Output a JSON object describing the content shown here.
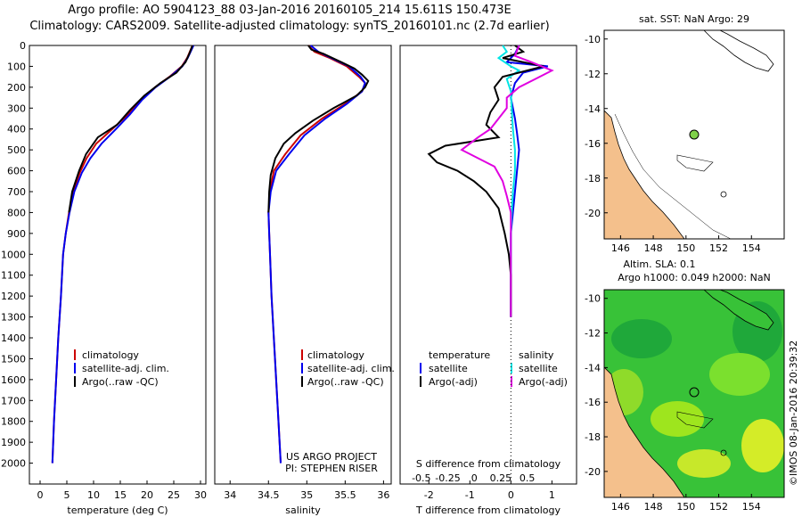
{
  "title_line1": "Argo profile: AO 5904123_88 03-Jan-2016 20160105_214 15.611S 150.473E",
  "title_line2": "Climatology: CARS2009. Satellite-adjusted climatology: synTS_20160101.nc (2.7d earlier)",
  "watermark": "©IMOS 08-Jan-2016 20:39:32",
  "colors": {
    "climatology": "#cc0000",
    "satellite": "#0000ee",
    "argo": "#000000",
    "cyan": "#00e5e5",
    "magenta": "#e000e0",
    "land": "#f4c08c",
    "sea_green": "#2ecc2e"
  },
  "chart_data": [
    {
      "type": "line",
      "id": "temperature",
      "xlabel": "temperature (deg C)",
      "ylabel": "depth",
      "xlim": [
        -2,
        31
      ],
      "ylim": [
        2100,
        0
      ],
      "xticks": [
        0,
        5,
        10,
        15,
        20,
        25,
        30
      ],
      "yticks": [
        0,
        100,
        200,
        300,
        400,
        500,
        600,
        700,
        800,
        900,
        1000,
        1100,
        1200,
        1300,
        1400,
        1500,
        1600,
        1700,
        1800,
        1900,
        2000
      ],
      "legend": [
        "climatology",
        "satellite-adj. clim.",
        "Argo(..raw -QC)"
      ],
      "series": [
        {
          "name": "climatology",
          "color": "#cc0000",
          "points": [
            [
              28.5,
              0
            ],
            [
              27.5,
              60
            ],
            [
              26.5,
              100
            ],
            [
              24.2,
              150
            ],
            [
              21.5,
              200
            ],
            [
              19,
              260
            ],
            [
              16.5,
              330
            ],
            [
              13.5,
              400
            ],
            [
              10.5,
              470
            ],
            [
              8.7,
              540
            ],
            [
              7.4,
              610
            ],
            [
              6.2,
              700
            ],
            [
              5.4,
              800
            ],
            [
              4.8,
              900
            ],
            [
              4.3,
              1000
            ],
            [
              3.9,
              1200
            ],
            [
              3.4,
              1400
            ],
            [
              3.0,
              1600
            ],
            [
              2.6,
              1800
            ],
            [
              2.3,
              2000
            ]
          ]
        },
        {
          "name": "satellite-adj. clim.",
          "color": "#0000ee",
          "points": [
            [
              28.7,
              0
            ],
            [
              27.6,
              60
            ],
            [
              26.6,
              100
            ],
            [
              24.3,
              150
            ],
            [
              21.6,
              200
            ],
            [
              19.1,
              260
            ],
            [
              16.8,
              330
            ],
            [
              14.2,
              400
            ],
            [
              11.5,
              470
            ],
            [
              9.4,
              540
            ],
            [
              7.8,
              610
            ],
            [
              6.4,
              700
            ],
            [
              5.5,
              800
            ],
            [
              4.8,
              900
            ],
            [
              4.3,
              1000
            ],
            [
              3.9,
              1200
            ],
            [
              3.4,
              1400
            ],
            [
              3.0,
              1600
            ],
            [
              2.6,
              1800
            ],
            [
              2.3,
              2000
            ]
          ]
        },
        {
          "name": "Argo(..raw -QC)",
          "color": "#000000",
          "points": [
            [
              28.5,
              0
            ],
            [
              27.9,
              40
            ],
            [
              27.2,
              80
            ],
            [
              25.5,
              130
            ],
            [
              22.5,
              180
            ],
            [
              19.5,
              240
            ],
            [
              16.8,
              310
            ],
            [
              14.4,
              380
            ],
            [
              10.8,
              440
            ],
            [
              8.6,
              520
            ],
            [
              7.3,
              600
            ],
            [
              6.0,
              700
            ],
            [
              5.4,
              800
            ]
          ]
        }
      ]
    },
    {
      "type": "line",
      "id": "salinity",
      "xlabel": "salinity",
      "ylabel": "depth",
      "xlim": [
        33.8,
        36.1
      ],
      "ylim": [
        2100,
        0
      ],
      "xticks": [
        34,
        34.5,
        35,
        35.5,
        36
      ],
      "tick_labels": [
        "34",
        "34.5",
        "35",
        "35.5",
        "36"
      ],
      "legend": [
        "climatology",
        "satellite-adj. clim.",
        "Argo(..raw -QC)"
      ],
      "annotation": [
        "US ARGO PROJECT",
        "PI: STEPHEN RISER"
      ],
      "series": [
        {
          "name": "climatology",
          "color": "#cc0000",
          "points": [
            [
              35.02,
              0
            ],
            [
              35.1,
              30
            ],
            [
              35.3,
              60
            ],
            [
              35.52,
              100
            ],
            [
              35.68,
              150
            ],
            [
              35.76,
              180
            ],
            [
              35.72,
              220
            ],
            [
              35.5,
              280
            ],
            [
              35.2,
              350
            ],
            [
              34.92,
              430
            ],
            [
              34.72,
              520
            ],
            [
              34.57,
              600
            ],
            [
              34.52,
              700
            ],
            [
              34.5,
              800
            ],
            [
              34.51,
              900
            ],
            [
              34.52,
              1000
            ],
            [
              34.54,
              1200
            ],
            [
              34.57,
              1400
            ],
            [
              34.6,
              1600
            ],
            [
              34.63,
              1800
            ],
            [
              34.66,
              2000
            ]
          ]
        },
        {
          "name": "satellite-adj. clim.",
          "color": "#0000ee",
          "points": [
            [
              35.05,
              0
            ],
            [
              35.15,
              30
            ],
            [
              35.32,
              60
            ],
            [
              35.55,
              100
            ],
            [
              35.7,
              150
            ],
            [
              35.76,
              180
            ],
            [
              35.72,
              220
            ],
            [
              35.52,
              280
            ],
            [
              35.24,
              350
            ],
            [
              34.97,
              430
            ],
            [
              34.77,
              520
            ],
            [
              34.6,
              600
            ],
            [
              34.53,
              700
            ],
            [
              34.5,
              800
            ],
            [
              34.51,
              900
            ],
            [
              34.52,
              1000
            ],
            [
              34.54,
              1200
            ],
            [
              34.57,
              1400
            ],
            [
              34.6,
              1600
            ],
            [
              34.63,
              1800
            ],
            [
              34.66,
              2000
            ]
          ]
        },
        {
          "name": "Argo(..raw -QC)",
          "color": "#000000",
          "points": [
            [
              35.02,
              0
            ],
            [
              35.06,
              20
            ],
            [
              35.22,
              40
            ],
            [
              35.45,
              80
            ],
            [
              35.62,
              110
            ],
            [
              35.72,
              140
            ],
            [
              35.8,
              170
            ],
            [
              35.76,
              200
            ],
            [
              35.65,
              240
            ],
            [
              35.35,
              300
            ],
            [
              35.08,
              360
            ],
            [
              34.85,
              420
            ],
            [
              34.7,
              470
            ],
            [
              34.59,
              540
            ],
            [
              34.53,
              620
            ],
            [
              34.51,
              700
            ],
            [
              34.5,
              800
            ]
          ]
        }
      ]
    },
    {
      "type": "line",
      "id": "difference",
      "xlabel": "T difference from climatology",
      "xlabel2": "S difference from climatology",
      "xlim": [
        -2.7,
        1.6
      ],
      "ylim": [
        2100,
        0
      ],
      "xticks": [
        -2,
        -1,
        0,
        1
      ],
      "tick_labels": [
        "-2",
        "-1",
        "0",
        "1"
      ],
      "xticks_s": [
        -2,
        -1,
        0,
        1,
        2
      ],
      "tick_labels_s": [
        "-0.5",
        "-0.25",
        "0",
        "0.25",
        "0.5"
      ],
      "legend_temperature": [
        "temperature",
        "satellite",
        "Argo(-adj)"
      ],
      "legend_salinity": [
        "salinity",
        "satellite",
        "Argo(-adj)"
      ],
      "series": [
        {
          "name": "T satellite",
          "color": "#0000ee",
          "points": [
            [
              0.2,
              0
            ],
            [
              0.1,
              40
            ],
            [
              -0.1,
              80
            ],
            [
              0.9,
              100
            ],
            [
              0.3,
              130
            ],
            [
              0.1,
              180
            ],
            [
              0,
              250
            ],
            [
              0.05,
              300
            ],
            [
              0.1,
              350
            ],
            [
              0.15,
              420
            ],
            [
              0.2,
              500
            ],
            [
              0.15,
              600
            ],
            [
              0.1,
              700
            ],
            [
              0.05,
              800
            ],
            [
              0,
              900
            ],
            [
              0,
              1100
            ],
            [
              0,
              1300
            ]
          ]
        },
        {
          "name": "S satellite",
          "color": "#00e5e5",
          "points": [
            [
              -0.2,
              0
            ],
            [
              -0.1,
              30
            ],
            [
              -0.3,
              60
            ],
            [
              0,
              100
            ],
            [
              0.2,
              120
            ],
            [
              -0.1,
              160
            ],
            [
              0,
              220
            ],
            [
              0.02,
              300
            ],
            [
              0.05,
              400
            ],
            [
              0.1,
              500
            ],
            [
              0.1,
              600
            ],
            [
              0.05,
              700
            ],
            [
              0.02,
              800
            ],
            [
              0,
              900
            ],
            [
              0,
              1100
            ],
            [
              0,
              1300
            ]
          ]
        },
        {
          "name": "T Argo(-adj)",
          "color": "#000000",
          "points": [
            [
              0.1,
              0
            ],
            [
              0.3,
              30
            ],
            [
              -0.2,
              60
            ],
            [
              0.8,
              100
            ],
            [
              -0.2,
              150
            ],
            [
              -0.4,
              200
            ],
            [
              -0.3,
              260
            ],
            [
              -0.5,
              320
            ],
            [
              -0.6,
              380
            ],
            [
              -0.3,
              440
            ],
            [
              -1.6,
              480
            ],
            [
              -2.0,
              520
            ],
            [
              -1.8,
              560
            ],
            [
              -1.3,
              600
            ],
            [
              -0.9,
              650
            ],
            [
              -0.6,
              700
            ],
            [
              -0.3,
              780
            ],
            [
              -0.15,
              900
            ],
            [
              -0.05,
              1000
            ],
            [
              0,
              1100
            ],
            [
              0,
              1200
            ],
            [
              0,
              1300
            ]
          ]
        },
        {
          "name": "S Argo(-adj)",
          "color": "#e000e0",
          "points": [
            [
              0.2,
              0
            ],
            [
              0.1,
              50
            ],
            [
              0.5,
              80
            ],
            [
              1.0,
              120
            ],
            [
              0.6,
              160
            ],
            [
              0.2,
              200
            ],
            [
              -0.1,
              250
            ],
            [
              -0.1,
              300
            ],
            [
              -0.3,
              350
            ],
            [
              -0.5,
              400
            ],
            [
              -0.8,
              440
            ],
            [
              -1.0,
              470
            ],
            [
              -1.2,
              500
            ],
            [
              -0.8,
              540
            ],
            [
              -0.4,
              580
            ],
            [
              -0.2,
              650
            ],
            [
              -0.1,
              720
            ],
            [
              0,
              800
            ],
            [
              0,
              900
            ],
            [
              0,
              1000
            ],
            [
              0,
              1100
            ],
            [
              0,
              1200
            ],
            [
              0,
              1300
            ]
          ]
        }
      ]
    },
    {
      "type": "map",
      "id": "sst",
      "title": "sat. SST: NaN Argo: 29",
      "xlim": [
        145,
        156
      ],
      "ylim": [
        -21.5,
        -9.5
      ],
      "xticks": [
        146,
        148,
        150,
        152,
        154
      ],
      "yticks": [
        -10,
        -12,
        -14,
        -16,
        -18,
        -20
      ],
      "argo_position": [
        150.47,
        -15.61
      ],
      "argo_value": 29
    },
    {
      "type": "map",
      "id": "sla",
      "title": "Altim. SLA: 0.1",
      "subtitle": "Argo h1000: 0.049 h2000: NaN",
      "xlim": [
        145,
        156
      ],
      "ylim": [
        -21.5,
        -9.5
      ],
      "xticks": [
        146,
        148,
        150,
        152,
        154
      ],
      "yticks": [
        -10,
        -12,
        -14,
        -16,
        -18,
        -20
      ],
      "argo_position": [
        150.47,
        -15.61
      ],
      "sla_value": 0.1,
      "h1000": 0.049
    }
  ]
}
